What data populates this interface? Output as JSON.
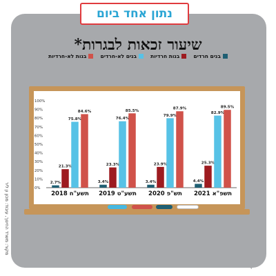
{
  "brand": {
    "name": "נתון אחד ביום"
  },
  "side_note": "מקור: משרד החינוך, עיבוד: מכון ון ליר",
  "colors": {
    "bubble": "#a7a9ac",
    "brand_border": "#e03a3e",
    "brand_text": "#2aa5d4",
    "board_frame": "#c69559",
    "board": "#ffffff"
  },
  "chalks": [
    {
      "name": "blue-chalk",
      "color": "#46b8e0"
    },
    {
      "name": "red-chalk",
      "color": "#d0524a"
    },
    {
      "name": "teal-chalk",
      "color": "#1f5f73"
    },
    {
      "name": "white-chalk",
      "color": "#ffffff"
    }
  ],
  "chart_data": {
    "type": "bar",
    "title": "שיעור זכאות לבגרות*",
    "categories": [
      "תשע\"ח 2018",
      "תשע\"ט 2019",
      "תש\"פ 2020",
      "תשפ\"א 2021"
    ],
    "series": [
      {
        "name": "בנים חרדים",
        "color": "#1f5f73",
        "values": [
          2.7,
          3.4,
          3.4,
          4.4
        ]
      },
      {
        "name": "בנות חרדיות",
        "color": "#9d1b20",
        "values": [
          21.3,
          23.3,
          23.9,
          25.3
        ]
      },
      {
        "name": "בנים לא-חרדים",
        "color": "#57c2e6",
        "values": [
          75.8,
          76.4,
          79.9,
          82.9
        ]
      },
      {
        "name": "בנות לא-חרדיות",
        "color": "#d0524a",
        "values": [
          84.6,
          85.5,
          87.9,
          89.5
        ]
      }
    ],
    "value_labels": [
      [
        "2.7%",
        "3.4%",
        "3.4%",
        "4.4%"
      ],
      [
        "21.3%",
        "23.3%",
        "23.9%",
        "25.3%"
      ],
      [
        "75.8%",
        "76.4%",
        "79.9%",
        "82.9%"
      ],
      [
        "84.6%",
        "85.5%",
        "87.9%",
        "89.5%"
      ]
    ],
    "ylim": [
      0,
      100
    ],
    "yticks": [
      0,
      10,
      20,
      30,
      40,
      50,
      60,
      70,
      80,
      90,
      100
    ],
    "ytick_labels": [
      "0%",
      "10%",
      "20%",
      "30%",
      "40%",
      "50%",
      "60%",
      "70%",
      "80%",
      "90%",
      "100%"
    ],
    "legend": [
      "בנות לא-חרדיות",
      "בנים לא-חרדים",
      "בנות חרדיות",
      "בנים חרדים"
    ],
    "legend_placement": "top",
    "grid": false
  }
}
